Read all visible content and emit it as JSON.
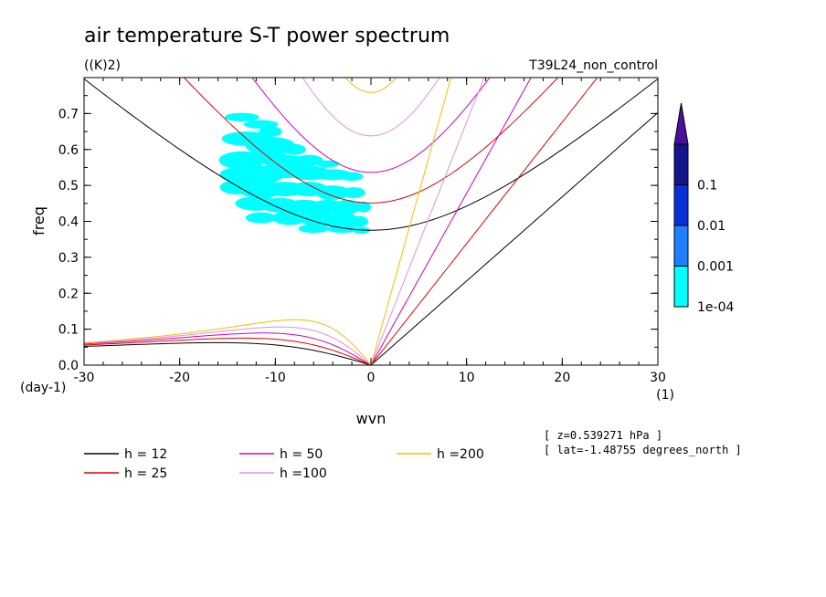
{
  "chart_data": {
    "type": "contour",
    "title": "air temperature S-T power spectrum",
    "units": "((K)2)",
    "experiment": "T39L24_non_control",
    "xlabel": "wvn",
    "ylabel": "freq",
    "x_unit": "(1)",
    "y_unit": "(day-1)",
    "xlim": [
      -30,
      30
    ],
    "ylim": [
      0,
      0.8
    ],
    "x_ticks": [
      -30,
      -20,
      -10,
      0,
      10,
      20,
      30
    ],
    "x_tick_labels": [
      "-30",
      "-20",
      "-10",
      "0",
      "10",
      "20",
      "30"
    ],
    "y_ticks": [
      0.0,
      0.1,
      0.2,
      0.3,
      0.4,
      0.5,
      0.6,
      0.7
    ],
    "y_tick_labels": [
      "0.0",
      "0.1",
      "0.2",
      "0.3",
      "0.4",
      "0.5",
      "0.6",
      "0.7"
    ],
    "colorbar": {
      "levels": [
        "1e-04",
        "0.001",
        "0.01",
        "0.1"
      ],
      "colors": [
        "#00ffff",
        "#1e7fff",
        "#0a2fd8",
        "#14148c",
        "#4b0fa0"
      ]
    },
    "contour_region": {
      "level": "1e-04",
      "color": "#00ffff",
      "approx_wvn_range": [
        -16,
        0
      ],
      "approx_freq_range": [
        0.37,
        0.7
      ]
    },
    "dispersion_curves": [
      {
        "name": "h = 12",
        "color": "#000000"
      },
      {
        "name": "h = 25",
        "color": "#e00000"
      },
      {
        "name": "h = 50",
        "color": "#d000c0"
      },
      {
        "name": "h =100",
        "color": "#e090e0"
      },
      {
        "name": "h =200",
        "color": "#f0c000"
      }
    ],
    "info": [
      "[ z=0.539271 hPa ]",
      "[ lat=-1.48755 degrees_north ]"
    ]
  }
}
